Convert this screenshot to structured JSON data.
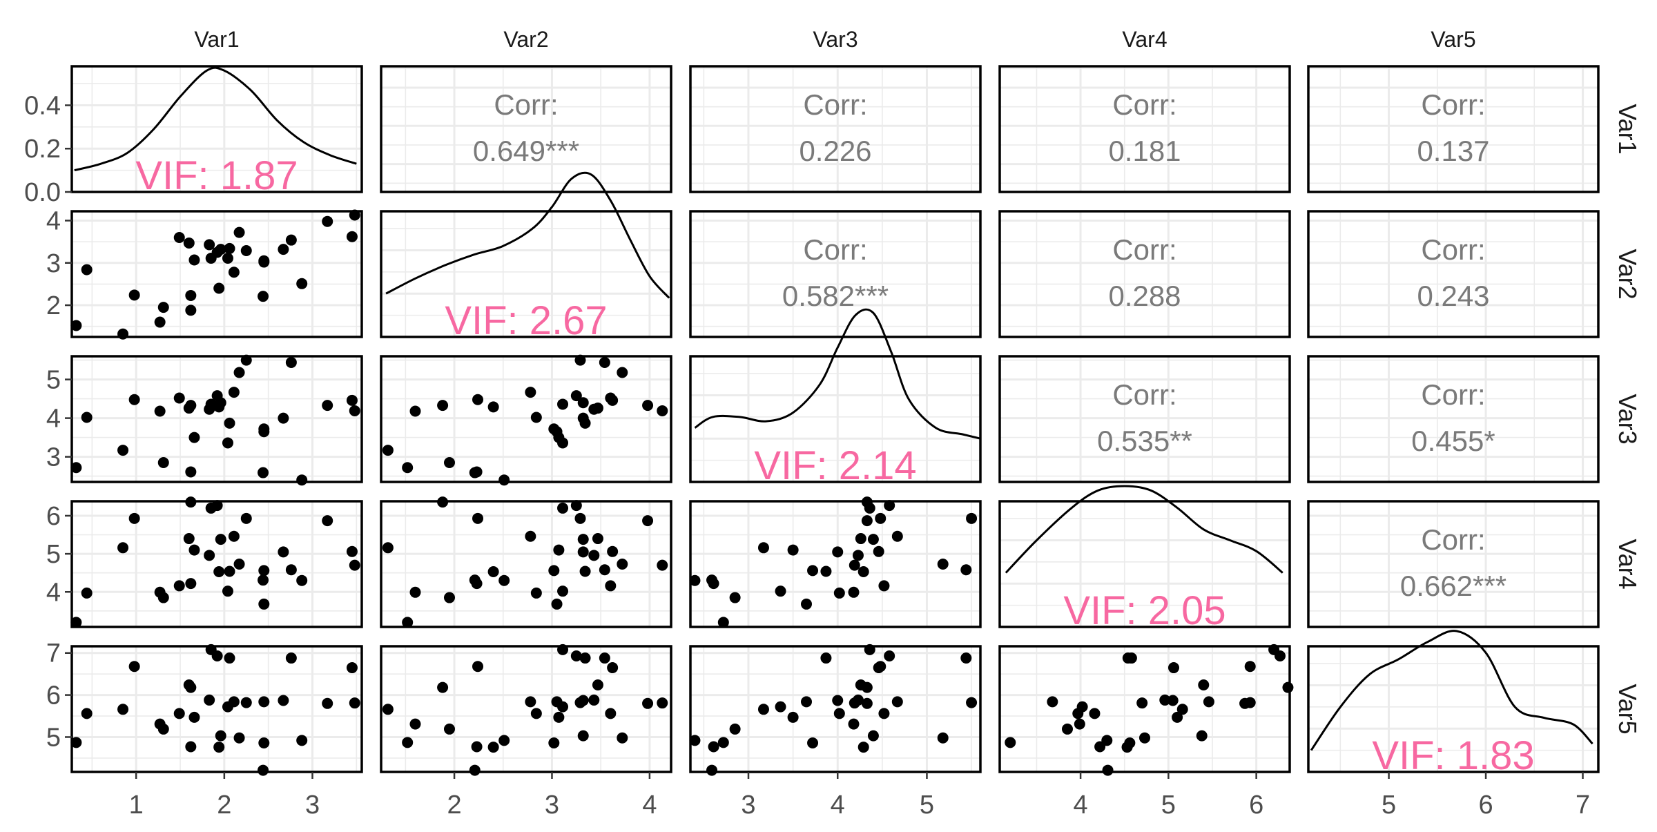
{
  "chart_data": {
    "type": "scatter",
    "variables": [
      "Var1",
      "Var2",
      "Var3",
      "Var4",
      "Var5"
    ],
    "axis_ranges": {
      "Var1": [
        0.27,
        3.56
      ],
      "Var2": [
        1.25,
        4.22
      ],
      "Var3": [
        2.35,
        5.6
      ],
      "Var4": [
        3.08,
        6.38
      ],
      "Var5": [
        4.17,
        7.16
      ]
    },
    "axis_ticks": {
      "Var1": [
        1,
        2,
        3
      ],
      "Var2": [
        2,
        3,
        4
      ],
      "Var3": [
        3,
        4,
        5
      ],
      "Var4": [
        4,
        5,
        6
      ],
      "Var5": [
        5,
        6,
        7
      ]
    },
    "density_y_range": [
      0,
      0.58
    ],
    "density_y_ticks": [
      "0.0",
      "0.2",
      "0.4"
    ],
    "grid": true,
    "corr_label": "Corr:",
    "correlations": [
      {
        "row": 0,
        "col": 1,
        "value": "0.649***"
      },
      {
        "row": 0,
        "col": 2,
        "value": "0.226"
      },
      {
        "row": 0,
        "col": 3,
        "value": "0.181"
      },
      {
        "row": 0,
        "col": 4,
        "value": "0.137"
      },
      {
        "row": 1,
        "col": 2,
        "value": "0.582***"
      },
      {
        "row": 1,
        "col": 3,
        "value": "0.288"
      },
      {
        "row": 1,
        "col": 4,
        "value": "0.243"
      },
      {
        "row": 2,
        "col": 3,
        "value": "0.535**"
      },
      {
        "row": 2,
        "col": 4,
        "value": "0.455*"
      },
      {
        "row": 3,
        "col": 4,
        "value": "0.662***"
      }
    ],
    "vif": [
      "VIF: 1.87",
      "VIF: 2.67",
      "VIF: 2.14",
      "VIF: 2.05",
      "VIF: 1.83"
    ],
    "vif_color": "#F768A1",
    "corr_color": "#7a7a7a",
    "point_color": "#000000",
    "densities": {
      "Var1": {
        "x": [
          0.3,
          0.6,
          0.9,
          1.2,
          1.5,
          1.8,
          2.0,
          2.3,
          2.6,
          2.9,
          3.2,
          3.5
        ],
        "y": [
          0.1,
          0.13,
          0.18,
          0.29,
          0.44,
          0.56,
          0.56,
          0.47,
          0.33,
          0.23,
          0.17,
          0.13
        ]
      },
      "Var2": {
        "x": [
          1.3,
          1.6,
          1.9,
          2.2,
          2.5,
          2.8,
          3.0,
          3.2,
          3.4,
          3.6,
          3.8,
          4.0,
          4.2
        ],
        "y": [
          0.2,
          0.27,
          0.33,
          0.38,
          0.42,
          0.5,
          0.6,
          0.73,
          0.75,
          0.63,
          0.45,
          0.28,
          0.18
        ]
      },
      "Var3": {
        "x": [
          2.4,
          2.6,
          2.9,
          3.2,
          3.5,
          3.8,
          4.0,
          4.2,
          4.4,
          4.6,
          4.8,
          5.1,
          5.4,
          5.6
        ],
        "y": [
          0.25,
          0.3,
          0.3,
          0.28,
          0.32,
          0.45,
          0.62,
          0.77,
          0.78,
          0.6,
          0.38,
          0.25,
          0.22,
          0.2
        ]
      },
      "Var4": {
        "x": [
          3.15,
          3.5,
          3.9,
          4.2,
          4.5,
          4.8,
          5.1,
          5.4,
          5.7,
          6.0,
          6.3
        ],
        "y": [
          0.25,
          0.4,
          0.55,
          0.63,
          0.65,
          0.63,
          0.55,
          0.45,
          0.4,
          0.35,
          0.25
        ]
      },
      "Var5": {
        "x": [
          4.2,
          4.5,
          4.8,
          5.1,
          5.4,
          5.7,
          6.0,
          6.3,
          6.6,
          6.9,
          7.1
        ],
        "y": [
          0.1,
          0.3,
          0.45,
          0.52,
          0.6,
          0.65,
          0.55,
          0.3,
          0.25,
          0.22,
          0.13
        ]
      }
    },
    "points": [
      [
        0.32,
        1.52,
        2.72,
        3.2,
        4.87
      ],
      [
        0.44,
        2.84,
        4.02,
        3.97,
        5.56
      ],
      [
        0.85,
        1.32,
        3.17,
        5.16,
        5.66
      ],
      [
        0.98,
        2.24,
        4.48,
        5.93,
        6.68
      ],
      [
        1.27,
        1.6,
        4.18,
        3.99,
        5.31
      ],
      [
        1.31,
        1.95,
        2.85,
        3.85,
        5.19
      ],
      [
        1.49,
        3.6,
        4.52,
        4.16,
        5.56
      ],
      [
        1.6,
        3.47,
        4.26,
        5.4,
        6.24
      ],
      [
        1.62,
        2.23,
        2.61,
        4.22,
        4.77
      ],
      [
        1.62,
        1.88,
        4.33,
        6.36,
        6.18
      ],
      [
        1.66,
        3.07,
        3.5,
        5.1,
        5.47
      ],
      [
        1.83,
        3.43,
        4.23,
        4.96,
        5.88
      ],
      [
        1.85,
        3.11,
        4.36,
        6.2,
        7.08
      ],
      [
        1.92,
        3.25,
        4.58,
        6.27,
        6.93
      ],
      [
        1.94,
        2.4,
        4.29,
        4.53,
        4.76
      ],
      [
        1.96,
        3.32,
        4.4,
        5.38,
        5.03
      ],
      [
        2.04,
        3.11,
        3.36,
        4.02,
        5.72
      ],
      [
        2.06,
        3.34,
        3.87,
        4.54,
        6.88
      ],
      [
        2.11,
        2.78,
        4.67,
        5.46,
        5.84
      ],
      [
        2.17,
        3.72,
        5.18,
        4.73,
        4.98
      ],
      [
        2.25,
        3.29,
        5.5,
        5.93,
        5.82
      ],
      [
        2.44,
        2.21,
        2.59,
        4.31,
        4.21
      ],
      [
        2.45,
        3.02,
        3.72,
        4.56,
        4.86
      ],
      [
        2.45,
        3.05,
        3.65,
        3.68,
        5.84
      ],
      [
        2.67,
        3.32,
        4.0,
        5.05,
        5.87
      ],
      [
        2.76,
        3.54,
        5.44,
        4.58,
        6.88
      ],
      [
        2.88,
        2.51,
        2.4,
        4.3,
        4.92
      ],
      [
        3.17,
        3.98,
        4.33,
        5.87,
        5.8
      ],
      [
        3.45,
        3.62,
        4.46,
        5.06,
        6.65
      ],
      [
        3.48,
        4.13,
        4.19,
        4.7,
        5.81
      ]
    ]
  }
}
